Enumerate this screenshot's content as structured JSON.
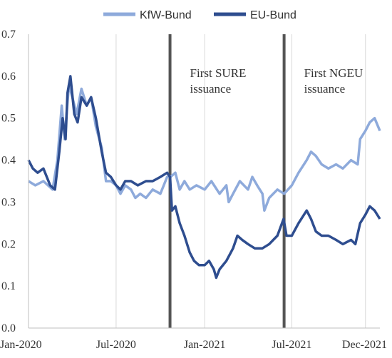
{
  "chart_data": {
    "type": "line",
    "title": "",
    "xlabel": "",
    "ylabel": "",
    "x_start": "2020-01-01",
    "x_end": "2021-12-31",
    "ylim": [
      0,
      0.7
    ],
    "y_ticks": [
      "0.0",
      "0.1",
      "0.2",
      "0.3",
      "0.4",
      "0.5",
      "0.6",
      "0.7"
    ],
    "x_ticks": [
      {
        "date": "2020-01-01",
        "label": "Jan-2020"
      },
      {
        "date": "2020-07-01",
        "label": "Jul-2020"
      },
      {
        "date": "2021-01-01",
        "label": "Jan-2021"
      },
      {
        "date": "2021-07-01",
        "label": "Jul-2021"
      },
      {
        "date": "2021-12-01",
        "label": "Dec-2021"
      }
    ],
    "grid": "vertical",
    "legend_position": "top",
    "events": [
      {
        "date": "2020-10-21",
        "label": [
          "First SURE",
          "issuance"
        ]
      },
      {
        "date": "2021-06-15",
        "label": [
          "First NGEU",
          "issuance"
        ]
      }
    ],
    "series": [
      {
        "name": "KfW-Bund",
        "color": "#8eaadb",
        "points": [
          [
            "2020-01-01",
            0.35
          ],
          [
            "2020-01-15",
            0.34
          ],
          [
            "2020-02-01",
            0.35
          ],
          [
            "2020-02-20",
            0.33
          ],
          [
            "2020-03-01",
            0.4
          ],
          [
            "2020-03-10",
            0.53
          ],
          [
            "2020-03-16",
            0.45
          ],
          [
            "2020-03-25",
            0.58
          ],
          [
            "2020-04-01",
            0.55
          ],
          [
            "2020-04-10",
            0.51
          ],
          [
            "2020-04-20",
            0.57
          ],
          [
            "2020-05-01",
            0.53
          ],
          [
            "2020-05-10",
            0.55
          ],
          [
            "2020-05-20",
            0.48
          ],
          [
            "2020-06-01",
            0.43
          ],
          [
            "2020-06-10",
            0.35
          ],
          [
            "2020-06-20",
            0.35
          ],
          [
            "2020-07-01",
            0.34
          ],
          [
            "2020-07-10",
            0.32
          ],
          [
            "2020-07-20",
            0.34
          ],
          [
            "2020-08-01",
            0.33
          ],
          [
            "2020-08-10",
            0.31
          ],
          [
            "2020-08-20",
            0.32
          ],
          [
            "2020-09-01",
            0.31
          ],
          [
            "2020-09-15",
            0.33
          ],
          [
            "2020-10-01",
            0.32
          ],
          [
            "2020-10-15",
            0.36
          ],
          [
            "2020-10-22",
            0.36
          ],
          [
            "2020-11-01",
            0.37
          ],
          [
            "2020-11-10",
            0.33
          ],
          [
            "2020-11-20",
            0.35
          ],
          [
            "2020-12-01",
            0.33
          ],
          [
            "2020-12-15",
            0.34
          ],
          [
            "2021-01-01",
            0.33
          ],
          [
            "2021-01-15",
            0.35
          ],
          [
            "2021-02-01",
            0.32
          ],
          [
            "2021-02-15",
            0.34
          ],
          [
            "2021-02-20",
            0.3
          ],
          [
            "2021-03-01",
            0.32
          ],
          [
            "2021-03-15",
            0.35
          ],
          [
            "2021-04-01",
            0.33
          ],
          [
            "2021-04-10",
            0.36
          ],
          [
            "2021-04-20",
            0.34
          ],
          [
            "2021-05-01",
            0.32
          ],
          [
            "2021-05-05",
            0.28
          ],
          [
            "2021-05-15",
            0.31
          ],
          [
            "2021-06-01",
            0.33
          ],
          [
            "2021-06-15",
            0.32
          ],
          [
            "2021-07-01",
            0.34
          ],
          [
            "2021-07-15",
            0.37
          ],
          [
            "2021-08-01",
            0.4
          ],
          [
            "2021-08-10",
            0.42
          ],
          [
            "2021-08-20",
            0.41
          ],
          [
            "2021-09-01",
            0.39
          ],
          [
            "2021-09-15",
            0.38
          ],
          [
            "2021-10-01",
            0.39
          ],
          [
            "2021-10-15",
            0.38
          ],
          [
            "2021-11-01",
            0.4
          ],
          [
            "2021-11-15",
            0.39
          ],
          [
            "2021-11-20",
            0.45
          ],
          [
            "2021-12-01",
            0.47
          ],
          [
            "2021-12-10",
            0.49
          ],
          [
            "2021-12-20",
            0.5
          ],
          [
            "2021-12-31",
            0.47
          ]
        ]
      },
      {
        "name": "EU-Bund",
        "color": "#2e4d8f",
        "points": [
          [
            "2020-01-01",
            0.4
          ],
          [
            "2020-01-10",
            0.38
          ],
          [
            "2020-01-20",
            0.37
          ],
          [
            "2020-02-01",
            0.38
          ],
          [
            "2020-02-15",
            0.34
          ],
          [
            "2020-02-25",
            0.33
          ],
          [
            "2020-03-05",
            0.42
          ],
          [
            "2020-03-12",
            0.5
          ],
          [
            "2020-03-18",
            0.45
          ],
          [
            "2020-03-22",
            0.56
          ],
          [
            "2020-03-28",
            0.6
          ],
          [
            "2020-04-05",
            0.51
          ],
          [
            "2020-04-12",
            0.49
          ],
          [
            "2020-04-20",
            0.55
          ],
          [
            "2020-05-01",
            0.53
          ],
          [
            "2020-05-10",
            0.55
          ],
          [
            "2020-05-20",
            0.5
          ],
          [
            "2020-06-01",
            0.42
          ],
          [
            "2020-06-10",
            0.37
          ],
          [
            "2020-06-20",
            0.36
          ],
          [
            "2020-07-01",
            0.34
          ],
          [
            "2020-07-10",
            0.33
          ],
          [
            "2020-07-20",
            0.35
          ],
          [
            "2020-08-01",
            0.35
          ],
          [
            "2020-08-15",
            0.34
          ],
          [
            "2020-09-01",
            0.35
          ],
          [
            "2020-09-15",
            0.35
          ],
          [
            "2020-10-01",
            0.36
          ],
          [
            "2020-10-15",
            0.37
          ],
          [
            "2020-10-21",
            0.36
          ],
          [
            "2020-10-25",
            0.28
          ],
          [
            "2020-11-01",
            0.29
          ],
          [
            "2020-11-10",
            0.25
          ],
          [
            "2020-11-20",
            0.22
          ],
          [
            "2020-12-01",
            0.18
          ],
          [
            "2020-12-10",
            0.16
          ],
          [
            "2020-12-20",
            0.15
          ],
          [
            "2021-01-01",
            0.15
          ],
          [
            "2021-01-10",
            0.16
          ],
          [
            "2021-01-20",
            0.14
          ],
          [
            "2021-01-25",
            0.12
          ],
          [
            "2021-02-01",
            0.14
          ],
          [
            "2021-02-15",
            0.16
          ],
          [
            "2021-03-01",
            0.19
          ],
          [
            "2021-03-10",
            0.22
          ],
          [
            "2021-03-20",
            0.21
          ],
          [
            "2021-04-01",
            0.2
          ],
          [
            "2021-04-15",
            0.19
          ],
          [
            "2021-05-01",
            0.19
          ],
          [
            "2021-05-15",
            0.2
          ],
          [
            "2021-06-01",
            0.22
          ],
          [
            "2021-06-14",
            0.26
          ],
          [
            "2021-06-20",
            0.22
          ],
          [
            "2021-07-01",
            0.22
          ],
          [
            "2021-07-15",
            0.25
          ],
          [
            "2021-08-01",
            0.28
          ],
          [
            "2021-08-10",
            0.26
          ],
          [
            "2021-08-20",
            0.23
          ],
          [
            "2021-09-01",
            0.22
          ],
          [
            "2021-09-15",
            0.22
          ],
          [
            "2021-10-01",
            0.21
          ],
          [
            "2021-10-15",
            0.2
          ],
          [
            "2021-11-01",
            0.21
          ],
          [
            "2021-11-10",
            0.2
          ],
          [
            "2021-11-20",
            0.25
          ],
          [
            "2021-12-01",
            0.27
          ],
          [
            "2021-12-10",
            0.29
          ],
          [
            "2021-12-20",
            0.28
          ],
          [
            "2021-12-31",
            0.26
          ]
        ]
      }
    ]
  }
}
